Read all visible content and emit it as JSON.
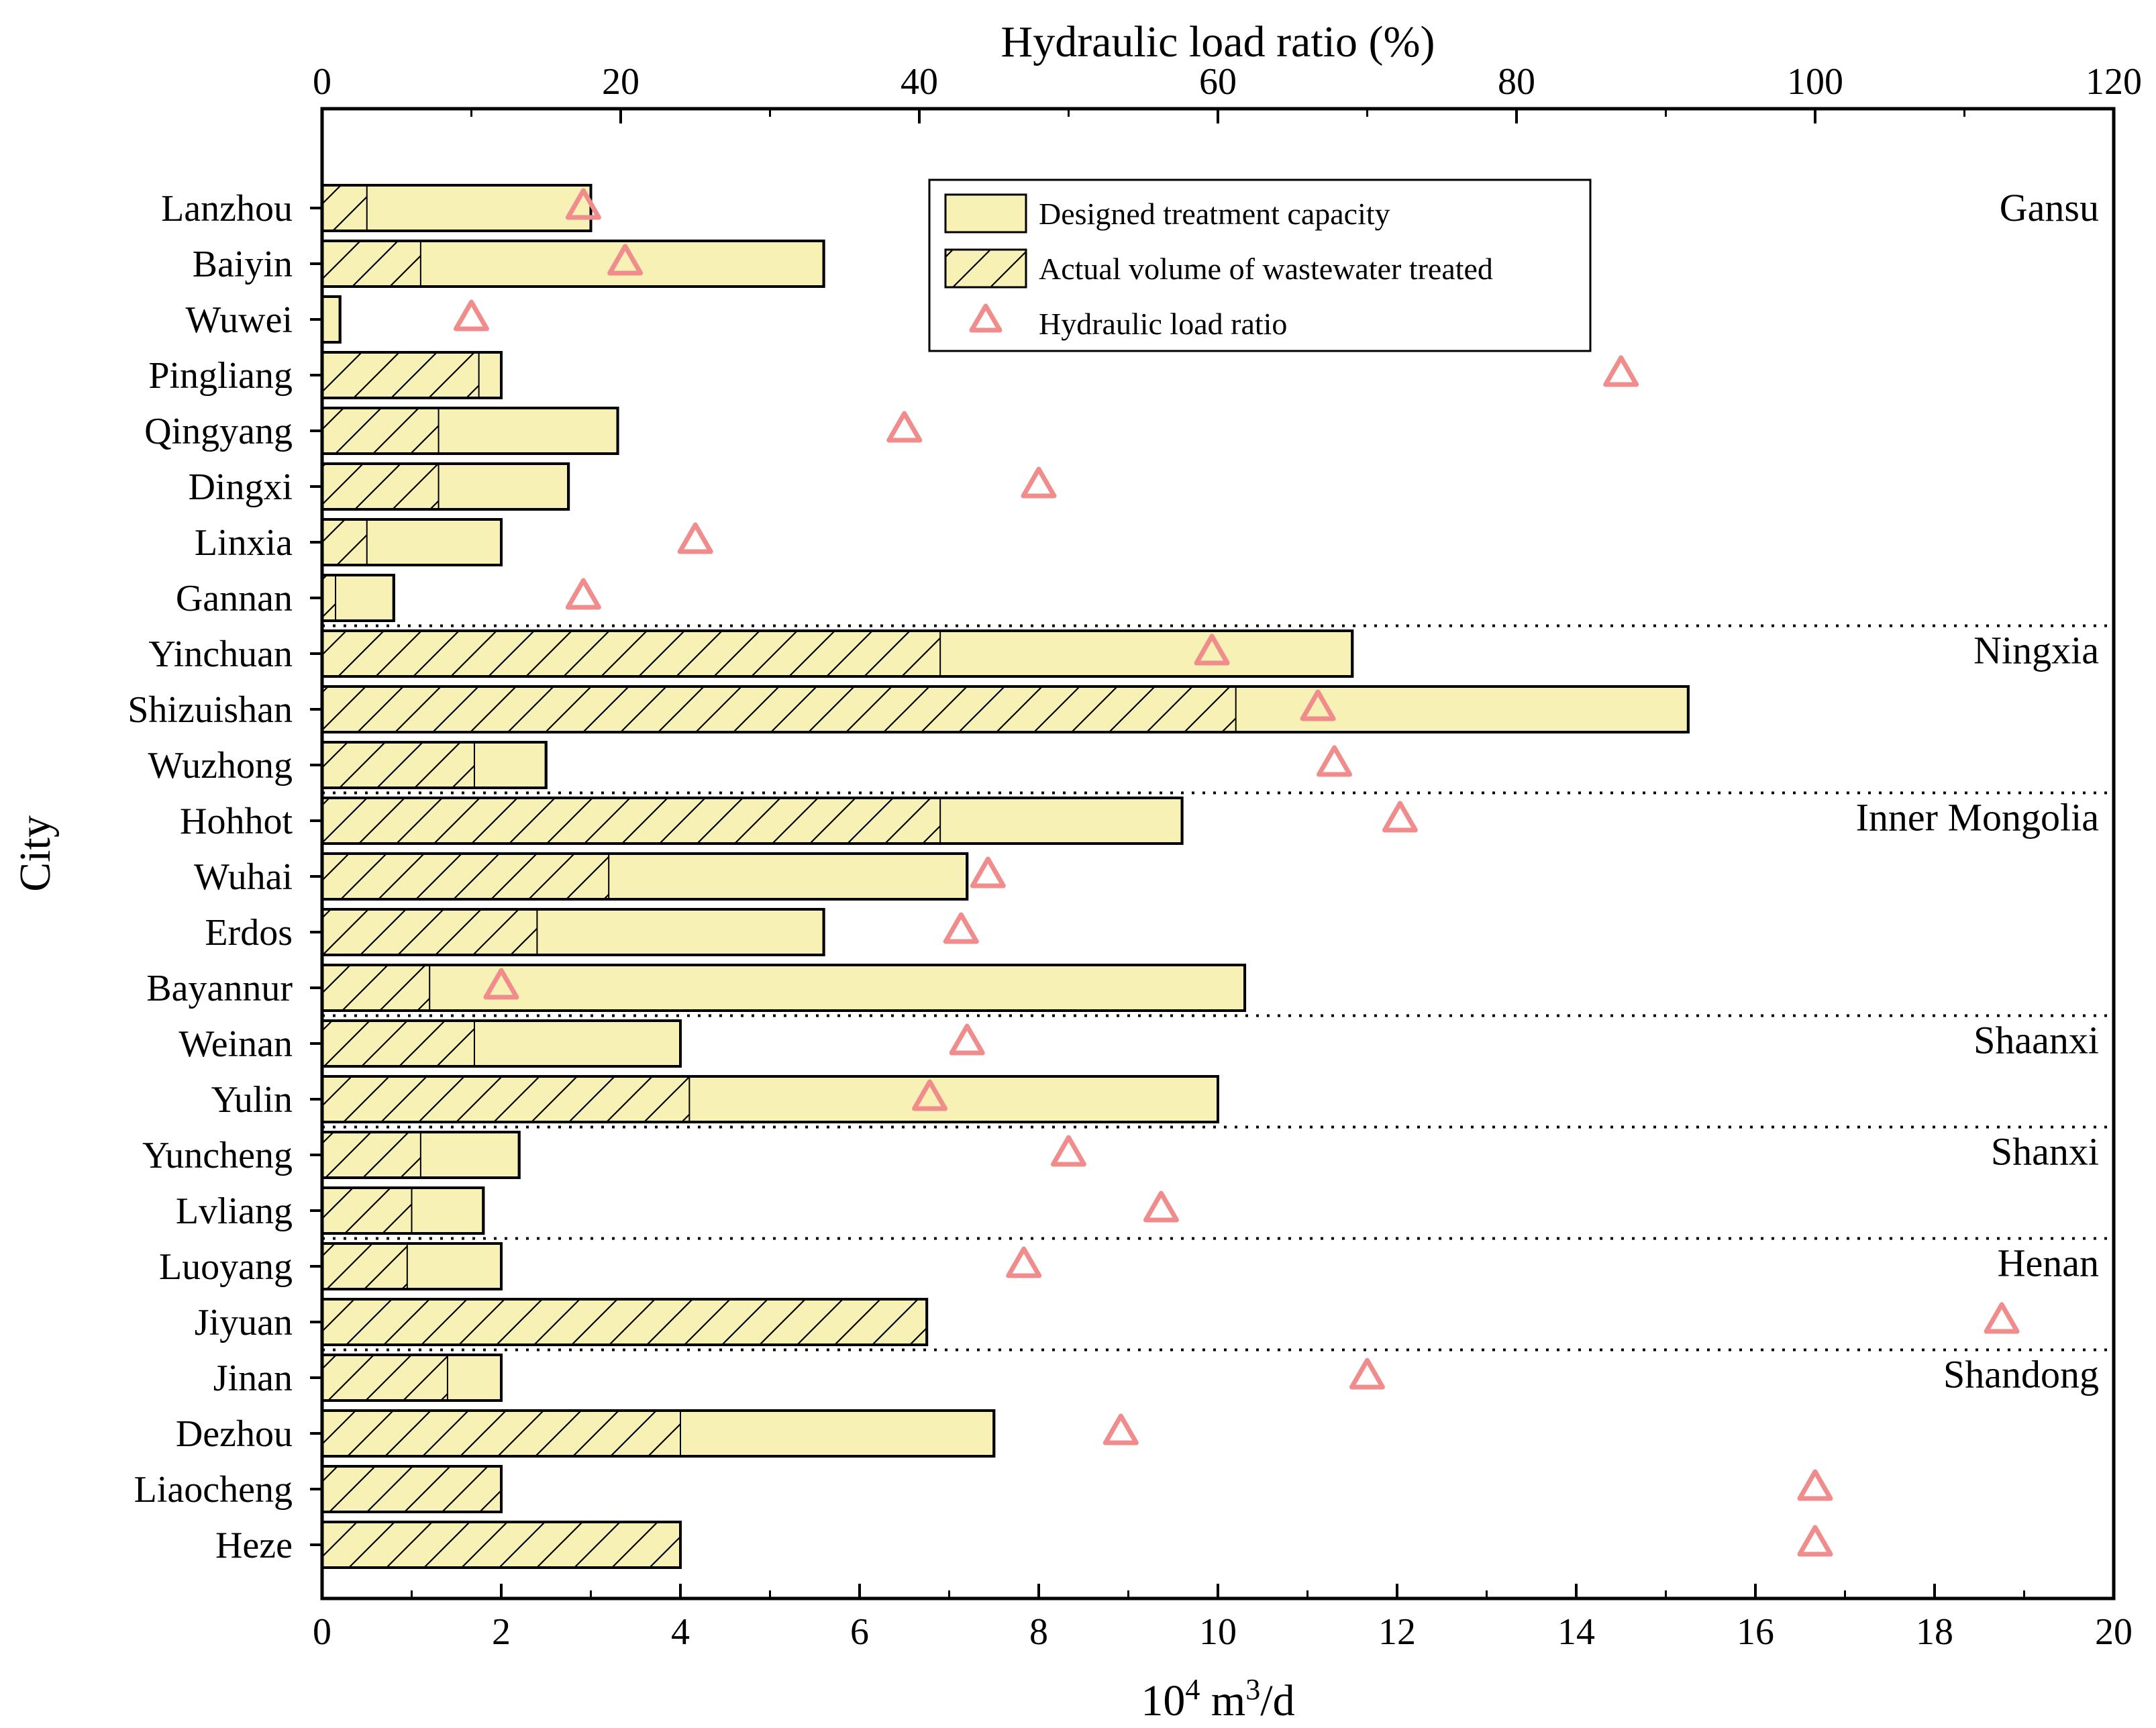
{
  "chart_data": {
    "type": "bar",
    "orientation": "horizontal",
    "title": "",
    "top_axis_title": "Hydraulic load ratio (%)",
    "bottom_axis_title_base": "10",
    "bottom_axis_title_exp": "4",
    "bottom_axis_title_rest": " m",
    "bottom_axis_title_exp2": "3",
    "bottom_axis_title_tail": "/d",
    "ylabel": "City",
    "xlim": [
      0,
      20
    ],
    "x2lim": [
      0,
      120
    ],
    "xticks": [
      0,
      2,
      4,
      6,
      8,
      10,
      12,
      14,
      16,
      18,
      20
    ],
    "x2ticks": [
      0,
      20,
      40,
      60,
      80,
      100,
      120
    ],
    "categories": [
      "Lanzhou",
      "Baiyin",
      "Wuwei",
      "Pingliang",
      "Qingyang",
      "Dingxi",
      "Linxia",
      "Gannan",
      "Yinchuan",
      "Shizuishan",
      "Wuzhong",
      "Hohhot",
      "Wuhai",
      "Erdos",
      "Bayannur",
      "Weinan",
      "Yulin",
      "Yuncheng",
      "Lvliang",
      "Luoyang",
      "Jiyuan",
      "Jinan",
      "Dezhou",
      "Liaocheng",
      "Heze"
    ],
    "series": [
      {
        "name": "Designed treatment capacity",
        "values": [
          3.0,
          5.6,
          0.2,
          2.0,
          3.3,
          2.75,
          2.0,
          0.8,
          11.5,
          15.25,
          2.5,
          9.6,
          7.2,
          5.6,
          10.3,
          4.0,
          10.0,
          2.2,
          1.8,
          2.0,
          6.75,
          2.0,
          7.5,
          2.0,
          4.0
        ]
      },
      {
        "name": "Actual volume of wastewater treated",
        "values": [
          0.5,
          1.1,
          0.0,
          1.75,
          1.3,
          1.3,
          0.5,
          0.15,
          6.9,
          10.2,
          1.7,
          6.9,
          3.2,
          2.4,
          1.2,
          1.7,
          4.1,
          1.1,
          1.0,
          0.95,
          6.75,
          1.4,
          4.0,
          2.0,
          4.0
        ]
      },
      {
        "name": "Hydraulic load ratio",
        "axis": "top",
        "unit": "%",
        "values": [
          17.5,
          20.3,
          10.0,
          87.0,
          39.0,
          48.0,
          25.0,
          17.5,
          59.6,
          66.7,
          67.8,
          72.2,
          44.6,
          42.8,
          12.0,
          43.2,
          40.7,
          50.0,
          56.2,
          47.0,
          112.5,
          70.0,
          53.5,
          100.0,
          100.0
        ],
        "marker": "triangle"
      }
    ],
    "legend": {
      "placement": "top-center",
      "items": [
        "Designed treatment capacity",
        "Actual volume of wastewater treated",
        "Hydraulic load ratio"
      ]
    },
    "groups": [
      {
        "name": "Gansu",
        "cities": [
          "Lanzhou",
          "Baiyin",
          "Wuwei",
          "Pingliang",
          "Qingyang",
          "Dingxi",
          "Linxia",
          "Gannan"
        ],
        "label_at": "Lanzhou"
      },
      {
        "name": "Ningxia",
        "cities": [
          "Yinchuan",
          "Shizuishan",
          "Wuzhong"
        ],
        "label_at": "Yinchuan"
      },
      {
        "name": "Inner Mongolia",
        "cities": [
          "Hohhot",
          "Wuhai",
          "Erdos",
          "Bayannur"
        ],
        "label_at": "Hohhot"
      },
      {
        "name": "Shaanxi",
        "cities": [
          "Weinan",
          "Yulin"
        ],
        "label_at": "Weinan"
      },
      {
        "name": "Shanxi",
        "cities": [
          "Yuncheng",
          "Lvliang"
        ],
        "label_at": "Yuncheng"
      },
      {
        "name": "Henan",
        "cities": [
          "Luoyang",
          "Jiyuan"
        ],
        "label_at": "Luoyang"
      },
      {
        "name": "Shandong",
        "cities": [
          "Jinan",
          "Dezhou",
          "Liaocheng",
          "Heze"
        ],
        "label_at": "Jinan"
      }
    ],
    "colors": {
      "bar_fill": "#f7f1b5",
      "bar_stroke": "#000000",
      "hatch": "#000000",
      "marker": "#f08c8c"
    }
  }
}
